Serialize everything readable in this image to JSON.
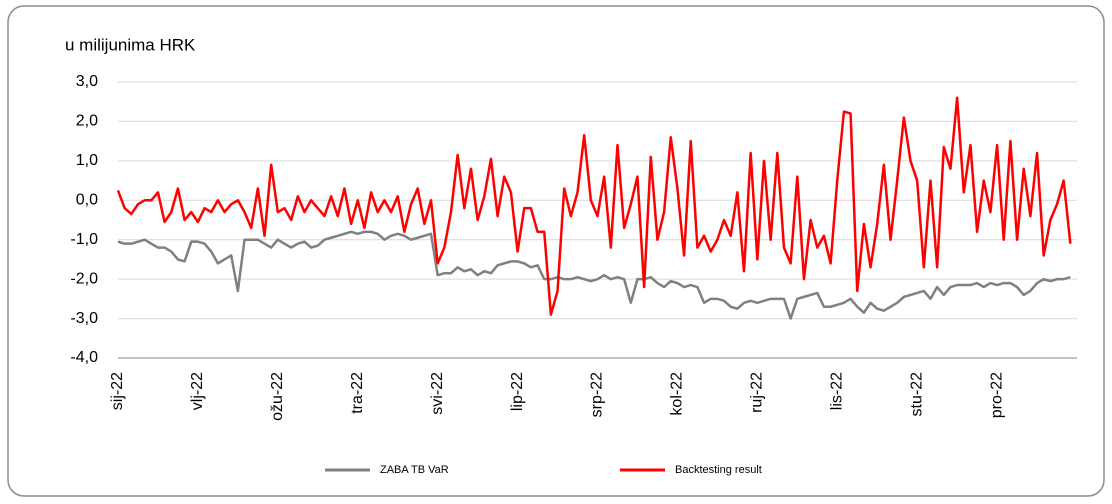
{
  "chart_data": {
    "type": "line",
    "title": "u milijunima HRK",
    "categories": [
      "sij-22",
      null,
      null,
      null,
      null,
      null,
      null,
      null,
      null,
      null,
      null,
      null,
      "vlj-22",
      null,
      null,
      null,
      null,
      null,
      null,
      null,
      null,
      null,
      null,
      null,
      "ožu-22",
      null,
      null,
      null,
      null,
      null,
      null,
      null,
      null,
      null,
      null,
      null,
      "tra-22",
      null,
      null,
      null,
      null,
      null,
      null,
      null,
      null,
      null,
      null,
      null,
      "svi-22",
      null,
      null,
      null,
      null,
      null,
      null,
      null,
      null,
      null,
      null,
      null,
      "lip-22",
      null,
      null,
      null,
      null,
      null,
      null,
      null,
      null,
      null,
      null,
      null,
      "srp-22",
      null,
      null,
      null,
      null,
      null,
      null,
      null,
      null,
      null,
      null,
      null,
      "kol-22",
      null,
      null,
      null,
      null,
      null,
      null,
      null,
      null,
      null,
      null,
      null,
      "ruj-22",
      null,
      null,
      null,
      null,
      null,
      null,
      null,
      null,
      null,
      null,
      null,
      "lis-22",
      null,
      null,
      null,
      null,
      null,
      null,
      null,
      null,
      null,
      null,
      null,
      "stu-22",
      null,
      null,
      null,
      null,
      null,
      null,
      null,
      null,
      null,
      null,
      null,
      "pro-22",
      null,
      null,
      null,
      null,
      null,
      null,
      null,
      null,
      null,
      null,
      null
    ],
    "series": [
      {
        "name": "ZABA TB VaR",
        "color": "#808080",
        "values": [
          -1.05,
          -1.1,
          -1.1,
          -1.05,
          -1.0,
          -1.1,
          -1.2,
          -1.2,
          -1.3,
          -1.5,
          -1.55,
          -1.05,
          -1.05,
          -1.1,
          -1.3,
          -1.6,
          -1.5,
          -1.4,
          -2.3,
          -1.0,
          -1.0,
          -1.0,
          -1.1,
          -1.2,
          -1.0,
          -1.1,
          -1.2,
          -1.1,
          -1.05,
          -1.2,
          -1.15,
          -1.0,
          -0.95,
          -0.9,
          -0.85,
          -0.8,
          -0.85,
          -0.8,
          -0.8,
          -0.85,
          -1.0,
          -0.9,
          -0.85,
          -0.9,
          -1.0,
          -0.95,
          -0.9,
          -0.85,
          -1.9,
          -1.85,
          -1.85,
          -1.7,
          -1.8,
          -1.75,
          -1.9,
          -1.8,
          -1.85,
          -1.65,
          -1.6,
          -1.55,
          -1.55,
          -1.6,
          -1.7,
          -1.65,
          -2.0,
          -2.0,
          -1.95,
          -2.0,
          -2.0,
          -1.95,
          -2.0,
          -2.05,
          -2.0,
          -1.9,
          -2.0,
          -1.95,
          -2.0,
          -2.6,
          -2.0,
          -2.0,
          -1.95,
          -2.1,
          -2.2,
          -2.05,
          -2.1,
          -2.2,
          -2.15,
          -2.2,
          -2.6,
          -2.5,
          -2.5,
          -2.55,
          -2.7,
          -2.75,
          -2.6,
          -2.55,
          -2.6,
          -2.55,
          -2.5,
          -2.5,
          -2.5,
          -3.0,
          -2.5,
          -2.45,
          -2.4,
          -2.35,
          -2.7,
          -2.7,
          -2.65,
          -2.6,
          -2.5,
          -2.7,
          -2.85,
          -2.6,
          -2.75,
          -2.8,
          -2.7,
          -2.6,
          -2.45,
          -2.4,
          -2.35,
          -2.3,
          -2.5,
          -2.2,
          -2.4,
          -2.2,
          -2.15,
          -2.15,
          -2.15,
          -2.1,
          -2.2,
          -2.1,
          -2.15,
          -2.1,
          -2.1,
          -2.2,
          -2.4,
          -2.3,
          -2.1,
          -2.0,
          -2.05,
          -2.0,
          -2.0,
          -1.95
        ]
      },
      {
        "name": "Backtesting result",
        "color": "#ff0000",
        "values": [
          0.25,
          -0.2,
          -0.35,
          -0.1,
          0.0,
          0.0,
          0.2,
          -0.55,
          -0.3,
          0.3,
          -0.5,
          -0.3,
          -0.55,
          -0.2,
          -0.3,
          0.0,
          -0.3,
          -0.1,
          0.0,
          -0.3,
          -0.7,
          0.3,
          -0.9,
          0.9,
          -0.3,
          -0.2,
          -0.5,
          0.1,
          -0.3,
          0.0,
          -0.2,
          -0.4,
          0.1,
          -0.4,
          0.3,
          -0.6,
          0.0,
          -0.7,
          0.2,
          -0.3,
          0.0,
          -0.3,
          0.1,
          -0.8,
          -0.1,
          0.3,
          -0.6,
          0.0,
          -1.6,
          -1.2,
          -0.3,
          1.15,
          -0.2,
          0.8,
          -0.5,
          0.1,
          1.05,
          -0.4,
          0.6,
          0.2,
          -1.3,
          -0.2,
          -0.2,
          -0.8,
          -0.8,
          -2.9,
          -2.3,
          0.3,
          -0.4,
          0.2,
          1.65,
          0.0,
          -0.4,
          0.6,
          -1.2,
          1.4,
          -0.7,
          -0.1,
          0.6,
          -2.2,
          1.1,
          -1.0,
          -0.3,
          1.6,
          0.3,
          -1.4,
          1.5,
          -1.2,
          -0.9,
          -1.3,
          -1.0,
          -0.5,
          -0.9,
          0.2,
          -1.8,
          1.2,
          -1.5,
          1.0,
          -1.0,
          1.2,
          -1.2,
          -1.6,
          0.6,
          -2.0,
          -0.5,
          -1.2,
          -0.9,
          -1.6,
          0.5,
          2.25,
          2.2,
          -2.3,
          -0.6,
          -1.7,
          -0.6,
          0.9,
          -1.0,
          0.5,
          2.1,
          1.0,
          0.5,
          -1.7,
          0.5,
          -1.7,
          1.35,
          0.8,
          2.6,
          0.2,
          1.4,
          -0.8,
          0.5,
          -0.3,
          1.4,
          -1.0,
          1.5,
          -1.0,
          0.8,
          -0.4,
          1.2,
          -1.4,
          -0.5,
          -0.1,
          0.5,
          -1.1
        ]
      }
    ],
    "ylim": [
      -4,
      3
    ],
    "yticks": [
      {
        "value": -4,
        "label": "-4,0"
      },
      {
        "value": -3,
        "label": "-3,0"
      },
      {
        "value": -2,
        "label": "-2,0"
      },
      {
        "value": -1,
        "label": "-1,0"
      },
      {
        "value": 0,
        "label": "0,0"
      },
      {
        "value": 1,
        "label": "1,0"
      },
      {
        "value": 2,
        "label": "2,0"
      },
      {
        "value": 3,
        "label": "3,0"
      }
    ],
    "grid": true
  }
}
